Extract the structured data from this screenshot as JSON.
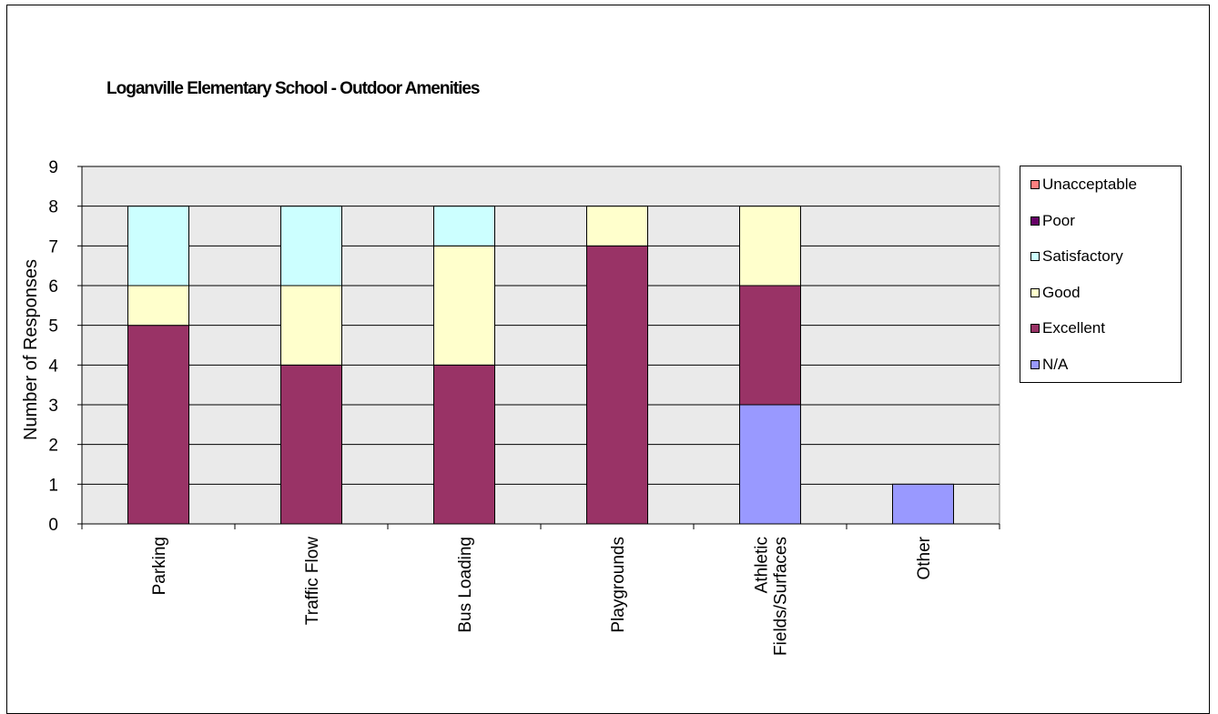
{
  "chart_data": {
    "type": "bar",
    "stacked": true,
    "title": "Loganville Elementary School - Outdoor Amenities",
    "ylabel": "Number of Responses",
    "xlabel": "",
    "ylim": [
      0,
      9
    ],
    "yticks": [
      0,
      1,
      2,
      3,
      4,
      5,
      6,
      7,
      8,
      9
    ],
    "grid": true,
    "legend_position": "right",
    "categories": [
      "Parking",
      "Traffic Flow",
      "Bus Loading",
      "Playgrounds",
      "Athletic Fields/Surfaces",
      "Other"
    ],
    "series": [
      {
        "name": "N/A",
        "color": "#9999ff",
        "values": [
          0,
          0,
          0,
          0,
          3,
          1
        ]
      },
      {
        "name": "Excellent",
        "color": "#993366",
        "values": [
          5,
          4,
          4,
          7,
          3,
          0
        ]
      },
      {
        "name": "Good",
        "color": "#ffffcc",
        "values": [
          1,
          2,
          3,
          1,
          2,
          0
        ]
      },
      {
        "name": "Satisfactory",
        "color": "#ccffff",
        "values": [
          2,
          2,
          1,
          0,
          0,
          0
        ]
      },
      {
        "name": "Poor",
        "color": "#660066",
        "values": [
          0,
          0,
          0,
          0,
          0,
          0
        ]
      },
      {
        "name": "Unacceptable",
        "color": "#ff8080",
        "values": [
          0,
          0,
          0,
          0,
          0,
          0
        ]
      }
    ],
    "legend_order": [
      "Unacceptable",
      "Poor",
      "Satisfactory",
      "Good",
      "Excellent",
      "N/A"
    ],
    "plot_background": "#eaeaea"
  }
}
